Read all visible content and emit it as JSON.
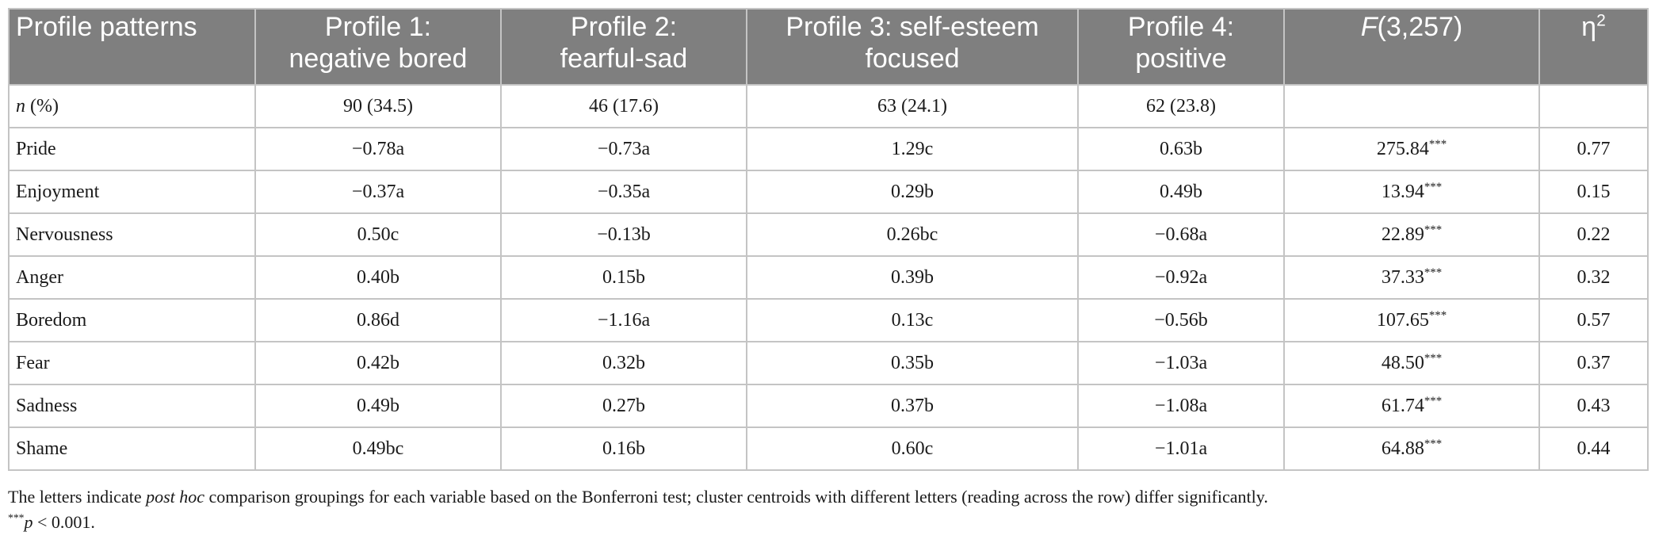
{
  "table": {
    "header": {
      "col0": "Profile patterns",
      "col1_line1": "Profile 1:",
      "col1_line2": "negative bored",
      "col2_line1": "Profile 2:",
      "col2_line2": "fearful-sad",
      "col3_line1": "Profile 3: self-esteem",
      "col3_line2": "focused",
      "col4_line1": "Profile 4:",
      "col4_line2": "positive",
      "col5_italic": "F",
      "col5_rest": "(3,257)",
      "col6_base": "η",
      "col6_sup": "2"
    },
    "n_row": {
      "label_italic": "n",
      "label_rest": " (%)",
      "p1": "90 (34.5)",
      "p2": "46 (17.6)",
      "p3": "63 (24.1)",
      "p4": "62 (23.8)",
      "f": "",
      "eta": ""
    },
    "rows": [
      {
        "label": "Pride",
        "p1": "−0.78a",
        "p2": "−0.73a",
        "p3": "1.29c",
        "p4": "0.63b",
        "f": "275.84",
        "f_sig": "***",
        "eta": "0.77"
      },
      {
        "label": "Enjoyment",
        "p1": "−0.37a",
        "p2": "−0.35a",
        "p3": "0.29b",
        "p4": "0.49b",
        "f": "13.94",
        "f_sig": "***",
        "eta": "0.15"
      },
      {
        "label": "Nervousness",
        "p1": "0.50c",
        "p2": "−0.13b",
        "p3": "0.26bc",
        "p4": "−0.68a",
        "f": "22.89",
        "f_sig": "***",
        "eta": "0.22"
      },
      {
        "label": "Anger",
        "p1": "0.40b",
        "p2": "0.15b",
        "p3": "0.39b",
        "p4": "−0.92a",
        "f": "37.33",
        "f_sig": "***",
        "eta": "0.32"
      },
      {
        "label": "Boredom",
        "p1": "0.86d",
        "p2": "−1.16a",
        "p3": "0.13c",
        "p4": "−0.56b",
        "f": "107.65",
        "f_sig": "***",
        "eta": "0.57"
      },
      {
        "label": "Fear",
        "p1": "0.42b",
        "p2": "0.32b",
        "p3": "0.35b",
        "p4": "−1.03a",
        "f": "48.50",
        "f_sig": "***",
        "eta": "0.37"
      },
      {
        "label": "Sadness",
        "p1": "0.49b",
        "p2": "0.27b",
        "p3": "0.37b",
        "p4": "−1.08a",
        "f": "61.74",
        "f_sig": "***",
        "eta": "0.43"
      },
      {
        "label": "Shame",
        "p1": "0.49bc",
        "p2": "0.16b",
        "p3": "0.60c",
        "p4": "−1.01a",
        "f": "64.88",
        "f_sig": "***",
        "eta": "0.44"
      }
    ]
  },
  "notes": {
    "line1_a": "The letters indicate ",
    "line1_italic": "post hoc",
    "line1_b": " comparison groupings for each variable based on the Bonferroni test; cluster centroids with different letters (reading across the row) differ significantly.",
    "line2_sup": "***",
    "line2_italic": "p",
    "line2_rest": " < 0.001."
  },
  "colors": {
    "header_bg": "#7f7f7f",
    "header_text": "#ffffff",
    "grid": "#c4c4c4"
  }
}
